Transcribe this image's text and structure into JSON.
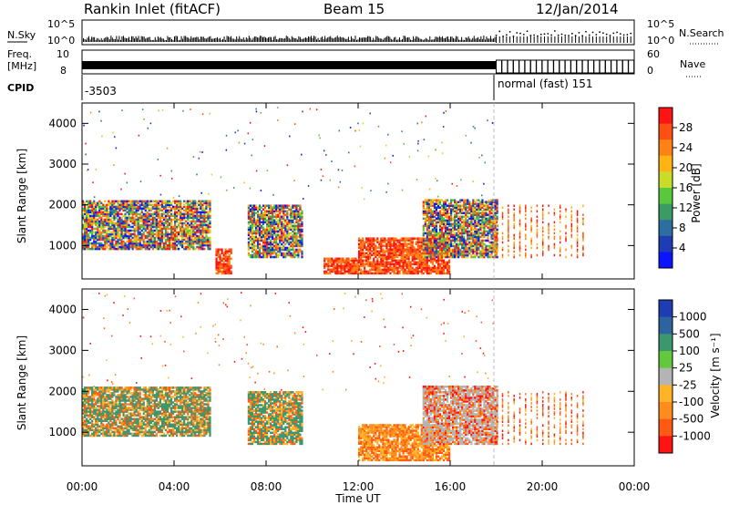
{
  "header": {
    "station": "Rankin Inlet (fitACF)",
    "beam": "Beam 15",
    "date": "12/Jan/2014"
  },
  "status_panels": {
    "left_labels": [
      "N.Sky",
      "Freq.",
      "[MHz]",
      "CPID"
    ],
    "right_labels": [
      "N.Search",
      "Nave"
    ],
    "nsky_ticks": [
      "10^5",
      "10^0"
    ],
    "nsearch_ticks": [
      "10^5",
      "10^0"
    ],
    "freq_ticks": [
      "10",
      "8"
    ],
    "nave_ticks": [
      "60",
      "0"
    ],
    "cpid_segments": [
      "-3503",
      "normal (fast) 151"
    ]
  },
  "colors": {
    "power_scale": [
      "#0a14ff",
      "#1e3cb4",
      "#2d6ea0",
      "#3c9a64",
      "#5ac83c",
      "#c8dc28",
      "#ffb414",
      "#ff8214",
      "#ff5014",
      "#ff1414"
    ],
    "velocity_scale": [
      "#1e3cb4",
      "#2d64a0",
      "#3c966e",
      "#64c83c",
      "#b4b4b4",
      "#ffb428",
      "#ff8c1e",
      "#ff5a14",
      "#ff1414"
    ]
  },
  "chart_data": [
    {
      "type": "heatmap",
      "name": "power",
      "xlabel": "",
      "ylabel": "Slant Range [km]",
      "x_ticks": [
        "00:00",
        "04:00",
        "08:00",
        "12:00",
        "16:00",
        "20:00",
        "00:00"
      ],
      "y_ticks": [
        1000,
        2000,
        3000,
        4000
      ],
      "ylim": [
        180,
        4500
      ],
      "xlim_hours": [
        0,
        24
      ],
      "colorbar_label": "Power [dB]",
      "colorbar_ticks": [
        4,
        8,
        12,
        16,
        20,
        24,
        28
      ],
      "regions": [
        {
          "t": [
            0,
            5.6
          ],
          "r": [
            900,
            2100
          ],
          "level": "mixed-high"
        },
        {
          "t": [
            5.8,
            6.5
          ],
          "r": [
            300,
            900
          ],
          "level": "high"
        },
        {
          "t": [
            7.2,
            9.6
          ],
          "r": [
            700,
            2000
          ],
          "level": "mixed"
        },
        {
          "t": [
            10.5,
            12.0
          ],
          "r": [
            300,
            700
          ],
          "level": "high"
        },
        {
          "t": [
            12.0,
            16.0
          ],
          "r": [
            300,
            1200
          ],
          "level": "high"
        },
        {
          "t": [
            14.8,
            18.0
          ],
          "r": [
            700,
            2100
          ],
          "level": "mixed"
        },
        {
          "t": [
            18.0,
            22.0
          ],
          "r": [
            700,
            2000
          ],
          "level": "sparse"
        }
      ]
    },
    {
      "type": "heatmap",
      "name": "velocity",
      "xlabel": "Time UT",
      "ylabel": "Slant Range [km]",
      "x_ticks": [
        "00:00",
        "04:00",
        "08:00",
        "12:00",
        "16:00",
        "20:00",
        "00:00"
      ],
      "y_ticks": [
        1000,
        2000,
        3000,
        4000
      ],
      "ylim": [
        180,
        4500
      ],
      "xlim_hours": [
        0,
        24
      ],
      "colorbar_label": "Velocity [m s⁻¹]",
      "colorbar_ticks": [
        1000,
        500,
        100,
        25,
        -25,
        -100,
        -500,
        -1000
      ],
      "regions": [
        {
          "t": [
            0,
            5.6
          ],
          "r": [
            900,
            2100
          ],
          "level": "mixed-green-orange"
        },
        {
          "t": [
            7.2,
            9.6
          ],
          "r": [
            700,
            2000
          ],
          "level": "mixed-green-orange"
        },
        {
          "t": [
            12.0,
            16.0
          ],
          "r": [
            300,
            1200
          ],
          "level": "orange"
        },
        {
          "t": [
            14.8,
            18.0
          ],
          "r": [
            700,
            2100
          ],
          "level": "mixed-grey-orange"
        },
        {
          "t": [
            18.0,
            22.0
          ],
          "r": [
            700,
            2000
          ],
          "level": "sparse"
        }
      ]
    }
  ]
}
